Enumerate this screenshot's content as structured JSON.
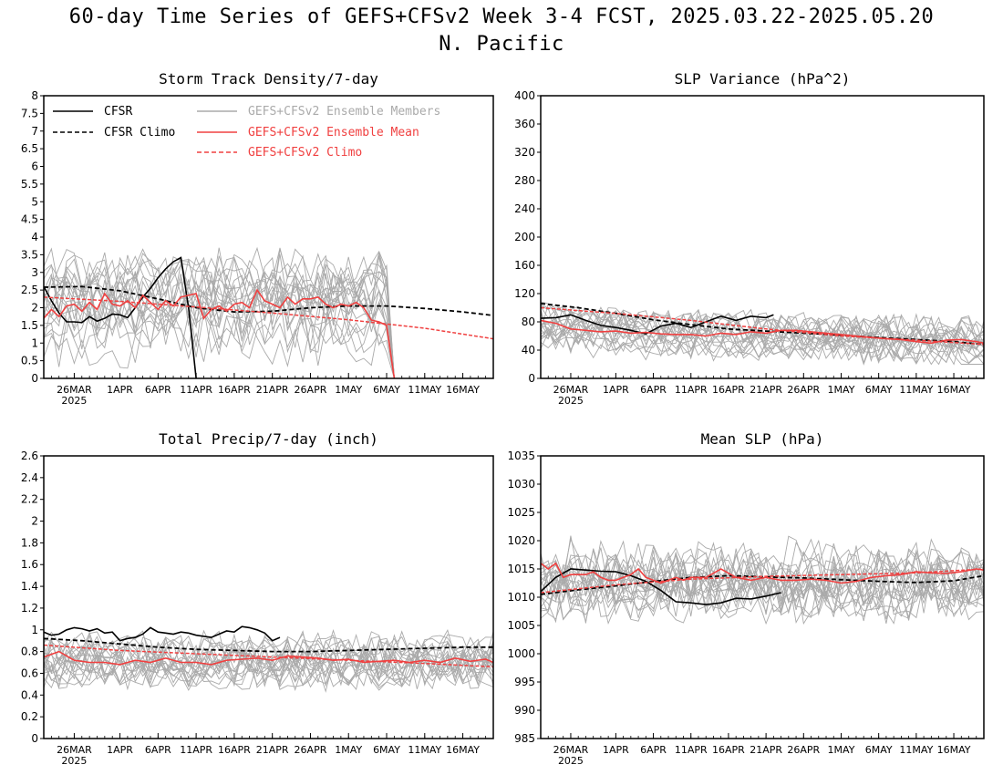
{
  "header": {
    "title_line1": "60-day Time Series of GEFS+CFSv2 Week 3-4 FCST, 2025.03.22-2025.05.20",
    "title_line2": "N. Pacific"
  },
  "colors": {
    "cfsr": "#000000",
    "ensemble_members": "#aaaaaa",
    "ensemble_mean": "#f04040",
    "gefs_climo": "#f04040",
    "axis": "#000000"
  },
  "legend": {
    "cfsr": "CFSR",
    "cfsr_climo": "CFSR Climo",
    "members": "GEFS+CFSv2 Ensemble Members",
    "mean": "GEFS+CFSv2 Ensemble Mean",
    "gefs_climo": "GEFS+CFSv2 Climo",
    "placement": "top-left of Storm Track Density panel"
  },
  "chart_data": [
    {
      "id": "storm",
      "type": "line",
      "title": "Storm Track Density/7-day",
      "ylim": [
        0,
        8
      ],
      "yticks": [
        "0",
        "0.5",
        "1",
        "1.5",
        "2",
        "2.5",
        "3",
        "3.5",
        "4",
        "4.5",
        "5",
        "5.5",
        "6",
        "6.5",
        "7",
        "7.5",
        "8"
      ],
      "xticks": [
        "26MAR",
        "1APR",
        "6APR",
        "11APR",
        "16APR",
        "21APR",
        "26APR",
        "1MAY",
        "6MAY",
        "11MAY",
        "16MAY"
      ],
      "xtick_days": [
        4,
        10,
        15,
        20,
        25,
        30,
        35,
        40,
        45,
        50,
        55
      ],
      "year_label": "2025",
      "xlim": [
        0,
        59
      ],
      "members": {
        "count": 20,
        "center": 2.05,
        "spread": 1.0,
        "noise": 0.85,
        "end_day": 46,
        "min": 0,
        "max": 4.9,
        "seed": 11
      },
      "series": [
        {
          "name": "CFSR",
          "style": "solid-black",
          "x": [
            0,
            1,
            2,
            3,
            4,
            5,
            6,
            7,
            8,
            9,
            10,
            11,
            12,
            13,
            14,
            15,
            16,
            17,
            18,
            19,
            20
          ],
          "y": [
            2.6,
            2.2,
            1.85,
            1.6,
            1.6,
            1.58,
            1.75,
            1.62,
            1.7,
            1.82,
            1.8,
            1.72,
            2.0,
            2.3,
            2.55,
            2.85,
            3.1,
            3.3,
            3.42,
            2.0,
            0
          ]
        },
        {
          "name": "CFSR Climo",
          "style": "dashed-black",
          "x": [
            0,
            5,
            10,
            15,
            20,
            25,
            30,
            35,
            40,
            45,
            50,
            55,
            59
          ],
          "y": [
            2.58,
            2.6,
            2.48,
            2.25,
            2.0,
            1.88,
            1.9,
            2.0,
            2.05,
            2.05,
            1.98,
            1.88,
            1.78
          ]
        },
        {
          "name": "GEFS+CFSv2 Ensemble Mean",
          "style": "solid-red",
          "x": [
            0,
            1,
            2,
            3,
            4,
            5,
            6,
            7,
            8,
            9,
            10,
            11,
            12,
            13,
            14,
            15,
            16,
            17,
            18,
            19,
            20,
            21,
            22,
            23,
            24,
            25,
            26,
            27,
            28,
            29,
            30,
            31,
            32,
            33,
            34,
            35,
            36,
            37,
            38,
            39,
            40,
            41,
            42,
            43,
            44,
            45,
            46
          ],
          "y": [
            1.7,
            1.95,
            1.75,
            2.05,
            2.1,
            1.9,
            2.15,
            1.95,
            2.4,
            2.1,
            2.05,
            2.2,
            2.0,
            2.35,
            2.15,
            1.95,
            2.2,
            2.05,
            2.3,
            2.35,
            2.4,
            1.7,
            1.95,
            2.05,
            1.9,
            2.1,
            2.15,
            2.0,
            2.5,
            2.2,
            2.1,
            2.0,
            2.3,
            2.1,
            2.25,
            2.25,
            2.3,
            2.1,
            2.0,
            2.1,
            2.05,
            2.15,
            2.0,
            1.65,
            1.6,
            1.5,
            0
          ]
        },
        {
          "name": "GEFS+CFSv2 Climo",
          "style": "dashed-red",
          "x": [
            0,
            10,
            20,
            30,
            40,
            50,
            59
          ],
          "y": [
            2.3,
            2.18,
            2.02,
            1.85,
            1.66,
            1.42,
            1.12
          ]
        }
      ]
    },
    {
      "id": "slpvar",
      "type": "line",
      "title": "SLP Variance (hPa^2)",
      "ylim": [
        0,
        400
      ],
      "yticks": [
        "0",
        "40",
        "80",
        "120",
        "160",
        "200",
        "240",
        "280",
        "320",
        "360",
        "400"
      ],
      "xticks": [
        "26MAR",
        "1APR",
        "6APR",
        "11APR",
        "16APR",
        "21APR",
        "26APR",
        "1MAY",
        "6MAY",
        "11MAY",
        "16MAY"
      ],
      "xtick_days": [
        4,
        10,
        15,
        20,
        25,
        30,
        35,
        40,
        45,
        50,
        55
      ],
      "year_label": "2025",
      "xlim": [
        0,
        59
      ],
      "members": {
        "count": 20,
        "center": 70,
        "spread": 18,
        "noise": 22,
        "end_day": 59,
        "min": 20,
        "max": 180,
        "seed": 23,
        "trend": -0.35
      },
      "series": [
        {
          "name": "CFSR",
          "style": "solid-black",
          "x": [
            0,
            2,
            4,
            6,
            8,
            10,
            12,
            14,
            16,
            18,
            20,
            22,
            24,
            26,
            28,
            30,
            31
          ],
          "y": [
            85,
            86,
            90,
            82,
            75,
            72,
            68,
            63,
            74,
            78,
            72,
            80,
            88,
            82,
            88,
            86,
            90
          ]
        },
        {
          "name": "CFSR Climo",
          "style": "dashed-black",
          "x": [
            0,
            5,
            10,
            15,
            20,
            25,
            30,
            35,
            40,
            45,
            50,
            55,
            59
          ],
          "y": [
            106,
            100,
            92,
            83,
            76,
            70,
            67,
            64,
            61,
            58,
            55,
            52,
            48
          ]
        },
        {
          "name": "GEFS+CFSv2 Ensemble Mean",
          "style": "solid-red",
          "x": [
            0,
            2,
            4,
            6,
            8,
            10,
            12,
            14,
            16,
            18,
            20,
            22,
            24,
            26,
            28,
            30,
            32,
            34,
            36,
            38,
            40,
            42,
            44,
            46,
            48,
            50,
            52,
            54,
            56,
            58,
            59
          ],
          "y": [
            82,
            78,
            70,
            68,
            66,
            67,
            64,
            65,
            63,
            62,
            62,
            60,
            64,
            62,
            66,
            64,
            68,
            68,
            66,
            64,
            62,
            60,
            58,
            56,
            55,
            52,
            50,
            54,
            55,
            52,
            50
          ]
        },
        {
          "name": "GEFS+CFSv2 Climo",
          "style": "dashed-red",
          "x": [
            0,
            10,
            20,
            30,
            40,
            50,
            59
          ],
          "y": [
            100,
            92,
            82,
            70,
            60,
            54,
            48
          ]
        }
      ]
    },
    {
      "id": "precip",
      "type": "line",
      "title": "Total Precip/7-day (inch)",
      "ylim": [
        0,
        2.6
      ],
      "yticks": [
        "0",
        "0.2",
        "0.4",
        "0.6",
        "0.8",
        "1",
        "1.2",
        "1.4",
        "1.6",
        "1.8",
        "2",
        "2.2",
        "2.4",
        "2.6"
      ],
      "xticks": [
        "26MAR",
        "1APR",
        "6APR",
        "11APR",
        "16APR",
        "21APR",
        "26APR",
        "1MAY",
        "6MAY",
        "11MAY",
        "16MAY"
      ],
      "xtick_days": [
        4,
        10,
        15,
        20,
        25,
        30,
        35,
        40,
        45,
        50,
        55
      ],
      "year_label": "2025",
      "xlim": [
        0,
        59
      ],
      "members": {
        "count": 20,
        "center": 0.72,
        "spread": 0.12,
        "noise": 0.17,
        "end_day": 59,
        "min": 0.25,
        "max": 1.32,
        "seed": 37
      },
      "series": [
        {
          "name": "CFSR",
          "style": "solid-black",
          "x": [
            0,
            1,
            2,
            3,
            4,
            5,
            6,
            7,
            8,
            9,
            10,
            11,
            12,
            13,
            14,
            15,
            16,
            17,
            18,
            19,
            20,
            21,
            22,
            23,
            24,
            25,
            26,
            27,
            28,
            29,
            30,
            31
          ],
          "y": [
            0.98,
            0.95,
            0.96,
            1.0,
            1.02,
            1.01,
            0.99,
            1.01,
            0.97,
            0.98,
            0.9,
            0.92,
            0.93,
            0.96,
            1.02,
            0.98,
            0.97,
            0.96,
            0.98,
            0.97,
            0.95,
            0.94,
            0.93,
            0.96,
            0.99,
            0.98,
            1.03,
            1.02,
            1.0,
            0.97,
            0.9,
            0.93
          ]
        },
        {
          "name": "CFSR Climo",
          "style": "dashed-black",
          "x": [
            0,
            5,
            10,
            15,
            20,
            25,
            30,
            35,
            40,
            45,
            50,
            55,
            59
          ],
          "y": [
            0.92,
            0.9,
            0.87,
            0.84,
            0.82,
            0.81,
            0.8,
            0.8,
            0.81,
            0.82,
            0.83,
            0.84,
            0.84
          ]
        },
        {
          "name": "GEFS+CFSv2 Ensemble Mean",
          "style": "solid-red",
          "x": [
            0,
            2,
            4,
            6,
            8,
            10,
            12,
            14,
            16,
            18,
            20,
            22,
            24,
            26,
            28,
            30,
            32,
            34,
            36,
            38,
            40,
            42,
            44,
            46,
            48,
            50,
            52,
            54,
            56,
            58,
            59
          ],
          "y": [
            0.75,
            0.8,
            0.72,
            0.7,
            0.7,
            0.68,
            0.72,
            0.7,
            0.74,
            0.7,
            0.7,
            0.68,
            0.72,
            0.73,
            0.74,
            0.72,
            0.76,
            0.75,
            0.74,
            0.72,
            0.73,
            0.7,
            0.71,
            0.72,
            0.7,
            0.72,
            0.7,
            0.74,
            0.71,
            0.73,
            0.7
          ]
        },
        {
          "name": "GEFS+CFSv2 Climo",
          "style": "dashed-red",
          "x": [
            0,
            10,
            20,
            30,
            40,
            50,
            59
          ],
          "y": [
            0.86,
            0.81,
            0.78,
            0.75,
            0.72,
            0.69,
            0.66
          ]
        }
      ]
    },
    {
      "id": "meanslp",
      "type": "line",
      "title": "Mean SLP (hPa)",
      "ylim": [
        985,
        1035
      ],
      "yticks": [
        "985",
        "990",
        "995",
        "1000",
        "1005",
        "1010",
        "1015",
        "1020",
        "1025",
        "1030",
        "1035"
      ],
      "xticks": [
        "26MAR",
        "1APR",
        "6APR",
        "11APR",
        "16APR",
        "21APR",
        "26APR",
        "1MAY",
        "6MAY",
        "11MAY",
        "16MAY"
      ],
      "xtick_days": [
        4,
        10,
        15,
        20,
        25,
        30,
        35,
        40,
        45,
        50,
        55
      ],
      "year_label": "2025",
      "xlim": [
        0,
        59
      ],
      "members": {
        "count": 20,
        "center": 1013,
        "spread": 3.5,
        "noise": 4.5,
        "end_day": 59,
        "min": 1000,
        "max": 1028,
        "seed": 53
      },
      "series": [
        {
          "name": "CFSR",
          "style": "solid-black",
          "x": [
            0,
            2,
            4,
            6,
            8,
            10,
            12,
            14,
            16,
            18,
            20,
            22,
            24,
            26,
            28,
            30,
            32
          ],
          "y": [
            1011,
            1013.5,
            1015,
            1014.8,
            1014.6,
            1014.5,
            1013.8,
            1012.8,
            1011.2,
            1009.2,
            1009,
            1008.7,
            1009,
            1009.8,
            1009.7,
            1010.2,
            1010.8
          ]
        },
        {
          "name": "CFSR Climo",
          "style": "dashed-black",
          "x": [
            0,
            5,
            10,
            15,
            20,
            25,
            30,
            35,
            40,
            45,
            50,
            55,
            59
          ],
          "y": [
            1010.5,
            1011.3,
            1012,
            1012.8,
            1013.5,
            1013.8,
            1013.6,
            1013.4,
            1013.1,
            1012.8,
            1012.6,
            1012.9,
            1013.8
          ]
        },
        {
          "name": "GEFS+CFSv2 Ensemble Mean",
          "style": "solid-red",
          "x": [
            0,
            1,
            2,
            3,
            4,
            5,
            6,
            7,
            8,
            9,
            10,
            11,
            12,
            13,
            14,
            15,
            16,
            17,
            18,
            19,
            20,
            22,
            24,
            26,
            28,
            30,
            32,
            34,
            36,
            38,
            40,
            42,
            44,
            46,
            48,
            50,
            52,
            54,
            56,
            58,
            59
          ],
          "y": [
            1016,
            1015,
            1016,
            1013.5,
            1014,
            1014,
            1014,
            1014.5,
            1013.5,
            1013,
            1013,
            1013.5,
            1014,
            1015,
            1013.5,
            1013,
            1012.5,
            1013,
            1013.5,
            1013,
            1013.5,
            1013.5,
            1015,
            1013.5,
            1013,
            1013.5,
            1013,
            1013,
            1013.2,
            1013,
            1012.5,
            1012.8,
            1013.5,
            1013.8,
            1014,
            1014.5,
            1014.3,
            1014.2,
            1014.5,
            1015,
            1014.8
          ]
        },
        {
          "name": "GEFS+CFSv2 Climo",
          "style": "dashed-red",
          "x": [
            0,
            10,
            20,
            30,
            40,
            50,
            59
          ],
          "y": [
            1010.8,
            1012.2,
            1013.2,
            1013.7,
            1014,
            1014.3,
            1015
          ]
        }
      ]
    }
  ]
}
